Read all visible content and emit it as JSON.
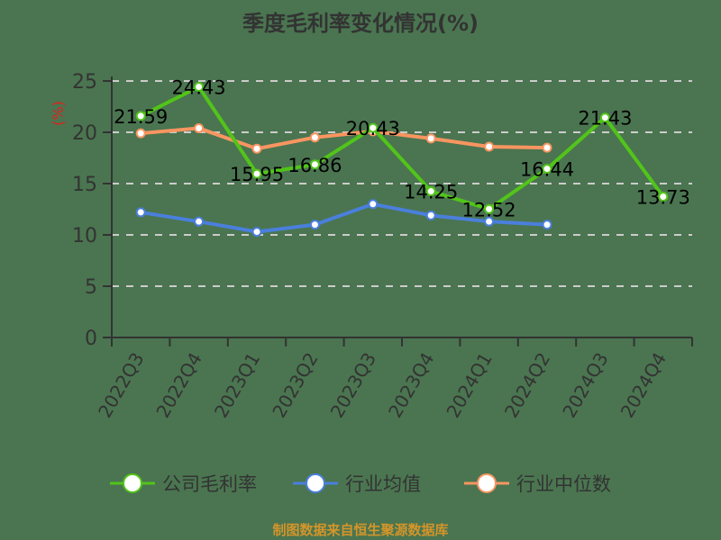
{
  "title": "季度毛利率变化情况(%)",
  "footer": "制图数据来自恒生聚源数据库",
  "colors": {
    "background": "#4a7550",
    "company": "#52c41a",
    "industry_avg": "#4a7fdc",
    "industry_median": "#f89561",
    "axis": "#333333",
    "grid": "#cccccc",
    "ylabel": "#e02020"
  },
  "chart_data": {
    "type": "line",
    "title": "季度毛利率变化情况(%)",
    "xlabel": "",
    "ylabel": "(%)",
    "ylim": [
      0,
      25
    ],
    "yticks": [
      0,
      5,
      10,
      15,
      20,
      25
    ],
    "grid": true,
    "legend_position": "bottom",
    "categories": [
      "2022Q3",
      "2022Q4",
      "2023Q1",
      "2023Q2",
      "2023Q3",
      "2023Q4",
      "2024Q1",
      "2024Q2",
      "2024Q3",
      "2024Q4"
    ],
    "series": [
      {
        "name": "公司毛利率",
        "values": [
          21.59,
          24.43,
          15.95,
          16.86,
          20.43,
          14.25,
          12.52,
          16.44,
          21.43,
          13.73
        ],
        "labels": [
          "21.59",
          "24.43",
          "15.95",
          "16.86",
          "20.43",
          "14.25",
          "12.52",
          "16.44",
          "21.43",
          "13.73"
        ]
      },
      {
        "name": "行业均值",
        "values": [
          12.2,
          11.3,
          10.3,
          11.0,
          13.0,
          11.9,
          11.3,
          11.0,
          null,
          null
        ]
      },
      {
        "name": "行业中位数",
        "values": [
          19.9,
          20.4,
          18.4,
          19.5,
          20.1,
          19.4,
          18.6,
          18.5,
          null,
          null
        ]
      }
    ]
  },
  "legend": [
    {
      "label": "公司毛利率"
    },
    {
      "label": "行业均值"
    },
    {
      "label": "行业中位数"
    }
  ]
}
